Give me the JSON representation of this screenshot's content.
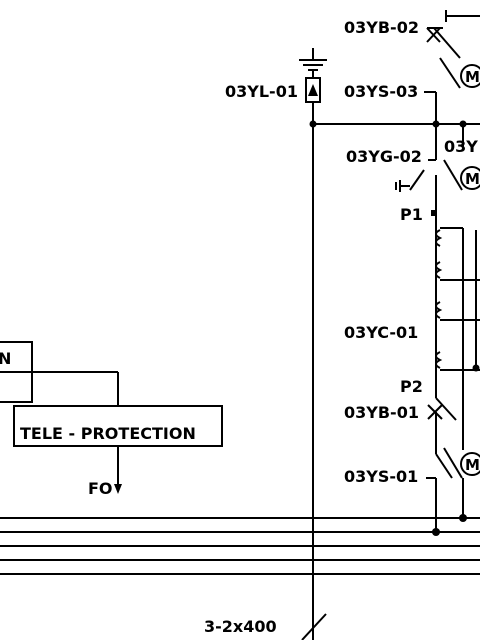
{
  "labels": {
    "ycb02": "03YB-02",
    "yl01": "03YL-01",
    "ys03": "03YS-03",
    "yg02": "03YG-02",
    "ytrunc": "03Y",
    "p1": "P1",
    "yc01": "03YC-01",
    "p2": "P2",
    "yb01": "03YB-01",
    "ys01": "03YS-01",
    "cable": "3-2x400",
    "motor_m": "M",
    "box_partial_text": "N",
    "tele_protection": "TELE - PROTECTION",
    "fo": "FO"
  }
}
